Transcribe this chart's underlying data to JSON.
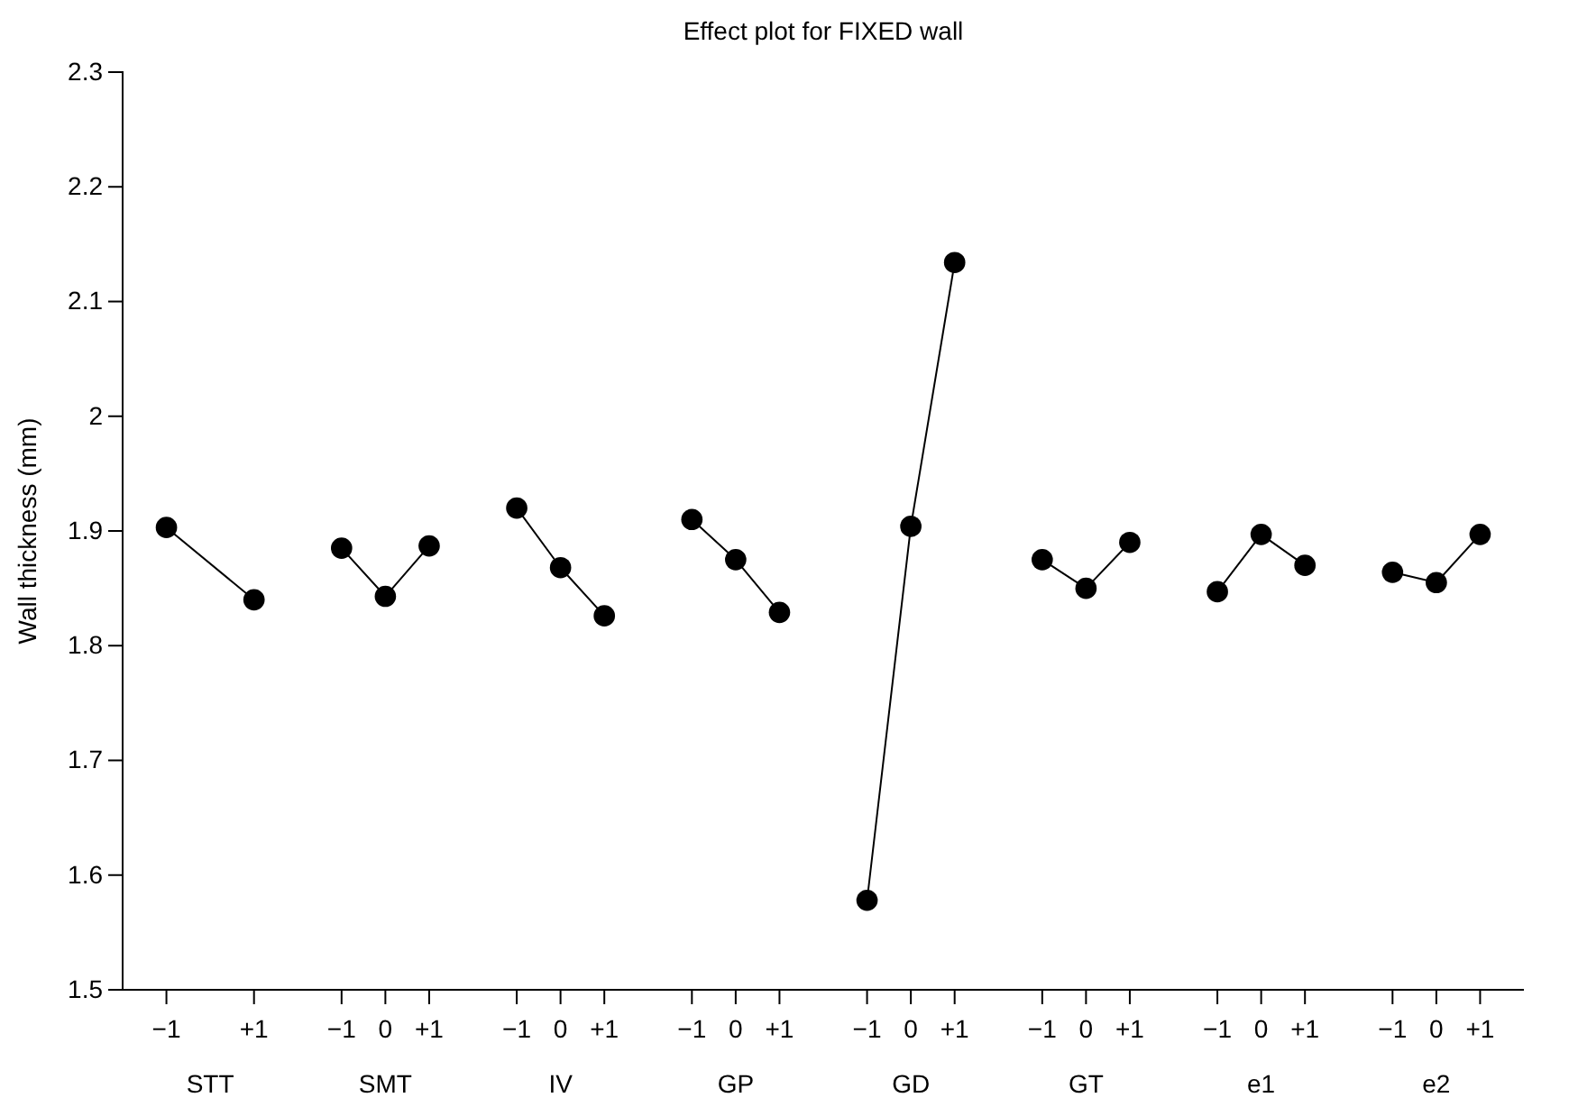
{
  "chart_data": {
    "type": "line",
    "title": "Effect plot for FIXED wall",
    "ylabel": "Wall thickness (mm)",
    "categories": [
      "−1",
      null,
      "+1",
      null,
      "−1",
      "0",
      "+1",
      null,
      "−1",
      "0",
      "+1",
      null,
      "−1",
      "0",
      "+1",
      null,
      "−1",
      "0",
      "+1",
      null,
      "−1",
      "0",
      "+1",
      null,
      "−1",
      "0",
      "+1",
      null,
      "−1",
      "0",
      "+1"
    ],
    "ylim": [
      1.5,
      2.3
    ],
    "yticks": [
      1.5,
      1.6,
      1.7,
      1.8,
      1.9,
      2,
      2.1,
      2.2,
      2.3
    ],
    "grid": false,
    "annotations": [
      "STT",
      "SMT",
      "IV",
      "GP",
      "GD",
      "GT",
      "e1",
      "e2"
    ],
    "marker": "circle",
    "line_style": "solid",
    "series": [
      {
        "color": "#000000",
        "values": [
          1.903,
          null,
          1.84,
          null,
          null,
          null,
          null,
          null,
          null,
          null,
          null,
          null,
          null,
          null,
          null,
          null,
          null,
          null,
          null,
          null,
          null,
          null,
          null,
          null,
          null,
          null,
          null,
          null,
          null,
          null,
          null
        ]
      },
      {
        "color": "#000000",
        "values": [
          null,
          null,
          null,
          null,
          1.885,
          1.843,
          1.887,
          null,
          null,
          null,
          null,
          null,
          null,
          null,
          null,
          null,
          null,
          null,
          null,
          null,
          null,
          null,
          null,
          null,
          null,
          null,
          null,
          null,
          null,
          null,
          null
        ]
      },
      {
        "color": "#000000",
        "values": [
          null,
          null,
          null,
          null,
          null,
          null,
          null,
          null,
          1.92,
          1.868,
          1.826,
          null,
          null,
          null,
          null,
          null,
          null,
          null,
          null,
          null,
          null,
          null,
          null,
          null,
          null,
          null,
          null,
          null,
          null,
          null,
          null
        ]
      },
      {
        "color": "#000000",
        "values": [
          null,
          null,
          null,
          null,
          null,
          null,
          null,
          null,
          null,
          null,
          null,
          null,
          1.91,
          1.875,
          1.829,
          null,
          null,
          null,
          null,
          null,
          null,
          null,
          null,
          null,
          null,
          null,
          null,
          null,
          null,
          null,
          null
        ]
      },
      {
        "color": "#000000",
        "values": [
          null,
          null,
          null,
          null,
          null,
          null,
          null,
          null,
          null,
          null,
          null,
          null,
          null,
          null,
          null,
          null,
          1.578,
          1.904,
          2.134,
          null,
          null,
          null,
          null,
          null,
          null,
          null,
          null,
          null,
          null,
          null,
          null
        ]
      },
      {
        "color": "#000000",
        "values": [
          null,
          null,
          null,
          null,
          null,
          null,
          null,
          null,
          null,
          null,
          null,
          null,
          null,
          null,
          null,
          null,
          null,
          null,
          null,
          null,
          1.875,
          1.85,
          1.89,
          null,
          null,
          null,
          null,
          null,
          null,
          null,
          null
        ]
      },
      {
        "color": "#000000",
        "values": [
          null,
          null,
          null,
          null,
          null,
          null,
          null,
          null,
          null,
          null,
          null,
          null,
          null,
          null,
          null,
          null,
          null,
          null,
          null,
          null,
          null,
          null,
          null,
          null,
          1.847,
          1.897,
          1.87,
          null,
          null,
          null,
          null
        ]
      },
      {
        "color": "#000000",
        "values": [
          null,
          null,
          null,
          null,
          null,
          null,
          null,
          null,
          null,
          null,
          null,
          null,
          null,
          null,
          null,
          null,
          null,
          null,
          null,
          null,
          null,
          null,
          null,
          null,
          null,
          null,
          null,
          null,
          1.864,
          1.855,
          1.897
        ]
      }
    ]
  }
}
